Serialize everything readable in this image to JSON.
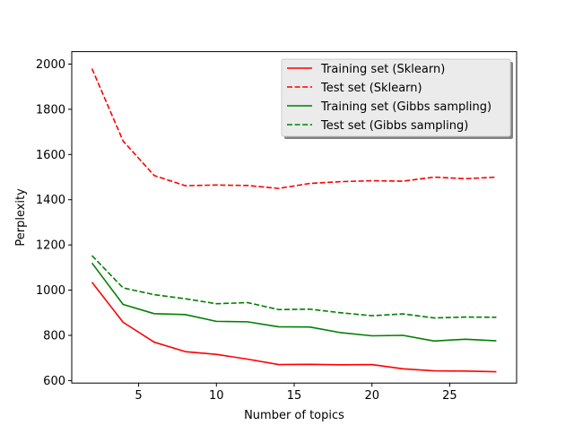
{
  "chart_data": {
    "type": "line",
    "title": "",
    "xlabel": "Number of topics",
    "ylabel": "Perplexity",
    "xlim": [
      0.7,
      29.3
    ],
    "ylim": [
      589,
      2055
    ],
    "xticks": [
      5,
      10,
      15,
      20,
      25
    ],
    "yticks": [
      600,
      800,
      1000,
      1200,
      1400,
      1600,
      1800,
      2000
    ],
    "grid": false,
    "legend_position": "top-right",
    "x": [
      2,
      4,
      6,
      8,
      10,
      12,
      14,
      16,
      18,
      20,
      22,
      24,
      26,
      28
    ],
    "series": [
      {
        "name": "Training set (Sklearn)",
        "color": "#ff0000",
        "linestyle": "solid",
        "values": [
          1035,
          858,
          770,
          728,
          716,
          695,
          671,
          672,
          670,
          671,
          652,
          643,
          642,
          639
        ]
      },
      {
        "name": "Test set (Sklearn)",
        "color": "#ff0000",
        "linestyle": "dashed",
        "values": [
          1980,
          1660,
          1507,
          1462,
          1465,
          1463,
          1450,
          1472,
          1480,
          1484,
          1482,
          1500,
          1493,
          1500
        ]
      },
      {
        "name": "Training set (Gibbs sampling)",
        "color": "#008000",
        "linestyle": "solid",
        "values": [
          1120,
          937,
          896,
          892,
          862,
          860,
          838,
          837,
          812,
          798,
          800,
          775,
          783,
          776
        ]
      },
      {
        "name": "Test set (Gibbs sampling)",
        "color": "#008000",
        "linestyle": "dashed",
        "values": [
          1153,
          1010,
          980,
          962,
          940,
          945,
          914,
          916,
          900,
          887,
          895,
          877,
          881,
          880
        ]
      }
    ]
  }
}
